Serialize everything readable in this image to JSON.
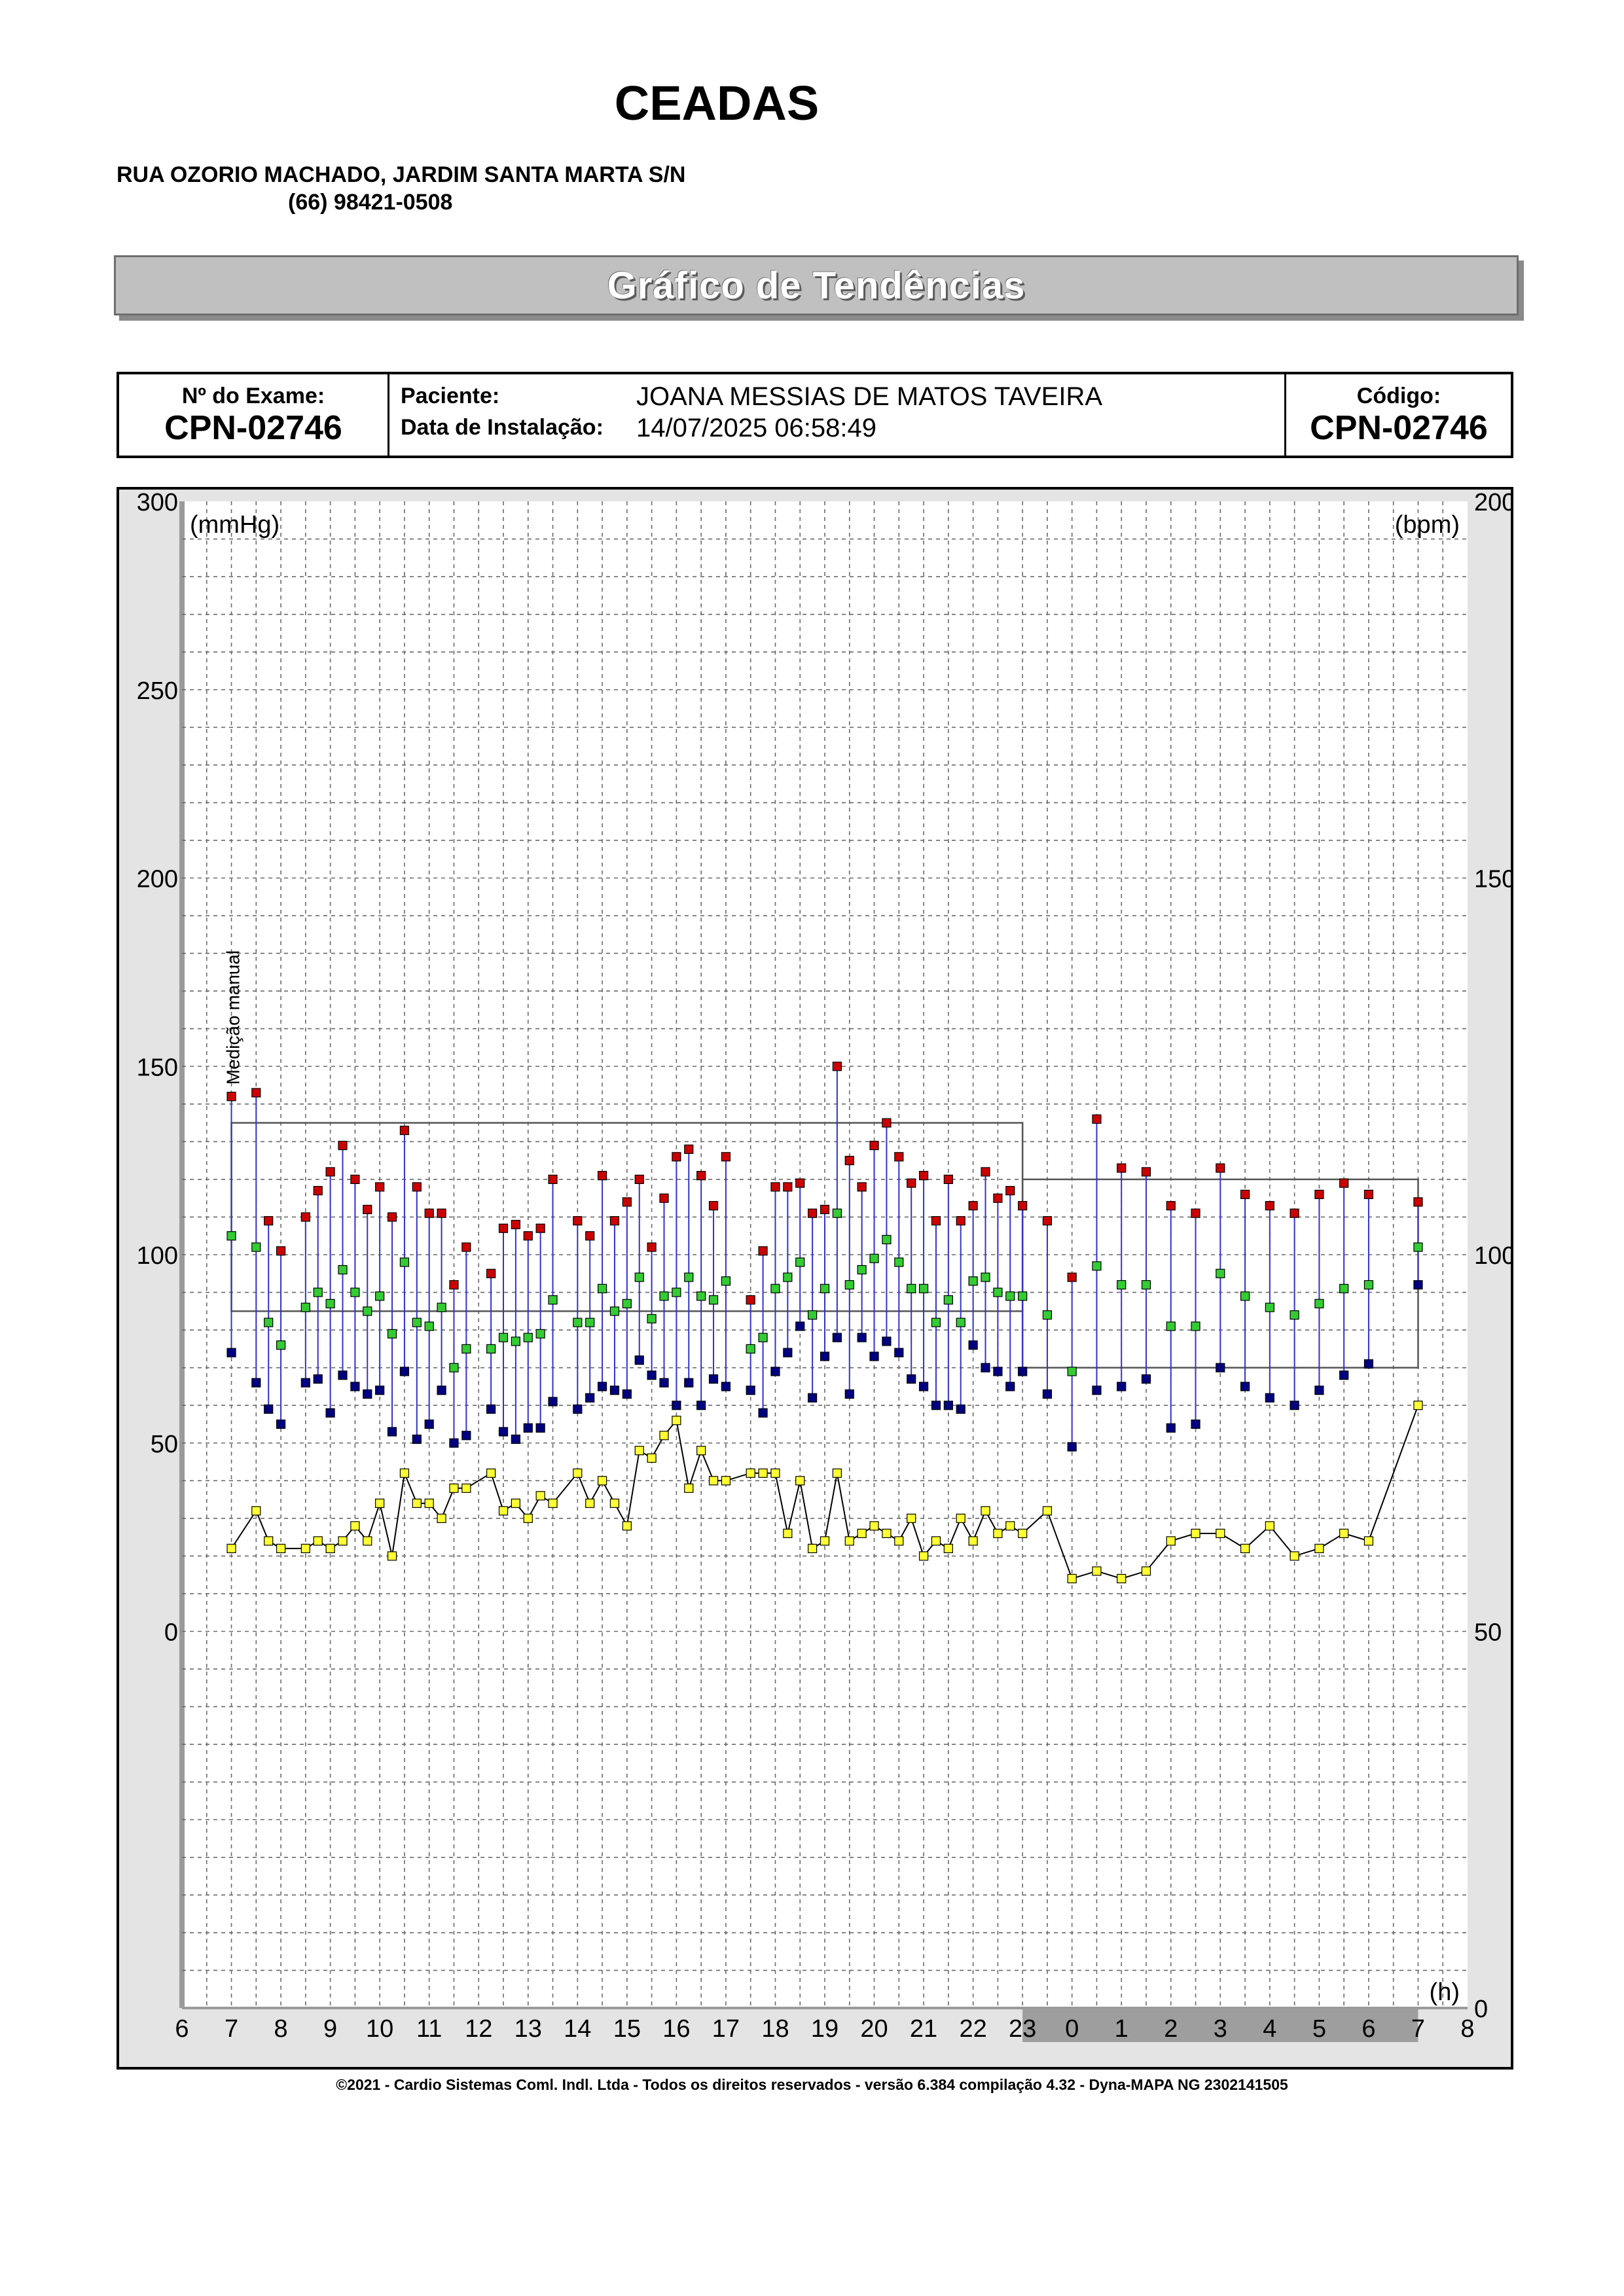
{
  "header": {
    "clinic_name": "CEADAS",
    "address": "RUA OZORIO MACHADO, JARDIM SANTA MARTA S/N",
    "phone": "(66) 98421-0508"
  },
  "title": "Gráfico de Tendências",
  "info": {
    "exam_label": "Nº do Exame:",
    "exam_value": "CPN-02746",
    "patient_label": "Paciente:",
    "patient_value": "JOANA MESSIAS DE MATOS TAVEIRA",
    "install_label": "Data de Instalação:",
    "install_value": "14/07/2025 06:58:49",
    "code_label": "Código:",
    "code_value": "CPN-02746"
  },
  "footer": "©2021 - Cardio Sistemas Coml. Indl. Ltda - Todos os direitos reservados - versão 6.384 compilação 4.32 - Dyna-MAPA NG 2302141505",
  "colors": {
    "systolic": "#cc0000",
    "diastolic": "#000080",
    "mean": "#33cc33",
    "heart_rate": "#ffff33",
    "connector": "#3333cc",
    "night_band": "#9e9e9e"
  },
  "chart_data": {
    "type": "scatter",
    "left_axis_label": "(mmHg)",
    "right_axis_label": "(bpm)",
    "x_axis_unit": "(h)",
    "annotation": "Medição manual",
    "left_axis_ticks": [
      300,
      250,
      200,
      150,
      100,
      50,
      0
    ],
    "right_axis_ticks": [
      200,
      150,
      100,
      50,
      0
    ],
    "x_ticks": [
      "6",
      "7",
      "8",
      "9",
      "10",
      "11",
      "12",
      "13",
      "14",
      "15",
      "16",
      "17",
      "18",
      "19",
      "20",
      "21",
      "22",
      "23",
      "0",
      "1",
      "2",
      "3",
      "4",
      "5",
      "6",
      "7",
      "8"
    ],
    "x_range_hours": [
      6,
      32
    ],
    "left_ylim": [
      -100,
      300
    ],
    "right_ylim": [
      0,
      200
    ],
    "night_shading_hours": [
      23,
      31
    ],
    "day_limits": {
      "start": 7,
      "end": 23,
      "systolic": 135,
      "diastolic": 85
    },
    "night_limits": {
      "start": 23,
      "end": 31,
      "systolic": 120,
      "diastolic": 70
    },
    "grid": true,
    "bp_series_order": [
      "systolic",
      "diastolic",
      "mean"
    ],
    "bp_readings": [
      [
        7.0,
        142,
        74,
        105
      ],
      [
        7.5,
        143,
        66,
        102
      ],
      [
        7.75,
        109,
        59,
        82
      ],
      [
        8.0,
        101,
        55,
        76
      ],
      [
        8.5,
        110,
        66,
        86
      ],
      [
        8.75,
        117,
        67,
        90
      ],
      [
        9.0,
        122,
        58,
        87
      ],
      [
        9.25,
        129,
        68,
        96
      ],
      [
        9.5,
        120,
        65,
        90
      ],
      [
        9.75,
        112,
        63,
        85
      ],
      [
        10.0,
        118,
        64,
        89
      ],
      [
        10.25,
        110,
        53,
        79
      ],
      [
        10.5,
        133,
        69,
        98
      ],
      [
        10.75,
        118,
        51,
        82
      ],
      [
        11.0,
        111,
        55,
        81
      ],
      [
        11.25,
        111,
        64,
        86
      ],
      [
        11.5,
        92,
        50,
        70
      ],
      [
        11.75,
        102,
        52,
        75
      ],
      [
        12.25,
        95,
        59,
        75
      ],
      [
        12.5,
        107,
        53,
        78
      ],
      [
        12.75,
        108,
        51,
        77
      ],
      [
        13.0,
        105,
        54,
        78
      ],
      [
        13.25,
        107,
        54,
        79
      ],
      [
        13.5,
        120,
        61,
        88
      ],
      [
        14.0,
        109,
        59,
        82
      ],
      [
        14.25,
        105,
        62,
        82
      ],
      [
        14.5,
        121,
        65,
        91
      ],
      [
        14.75,
        109,
        64,
        85
      ],
      [
        15.0,
        114,
        63,
        87
      ],
      [
        15.25,
        120,
        72,
        94
      ],
      [
        15.5,
        102,
        68,
        83
      ],
      [
        15.75,
        115,
        66,
        89
      ],
      [
        16.0,
        126,
        60,
        90
      ],
      [
        16.25,
        128,
        66,
        94
      ],
      [
        16.5,
        121,
        60,
        89
      ],
      [
        16.75,
        113,
        67,
        88
      ],
      [
        17.0,
        126,
        65,
        93
      ],
      [
        17.5,
        88,
        64,
        75
      ],
      [
        17.75,
        101,
        58,
        78
      ],
      [
        18.0,
        118,
        69,
        91
      ],
      [
        18.25,
        118,
        74,
        94
      ],
      [
        18.5,
        119,
        81,
        98
      ],
      [
        18.75,
        111,
        62,
        84
      ],
      [
        19.0,
        112,
        73,
        91
      ],
      [
        19.25,
        150,
        78,
        111
      ],
      [
        19.5,
        125,
        63,
        92
      ],
      [
        19.75,
        118,
        78,
        96
      ],
      [
        20.0,
        129,
        73,
        99
      ],
      [
        20.25,
        135,
        77,
        104
      ],
      [
        20.5,
        126,
        74,
        98
      ],
      [
        20.75,
        119,
        67,
        91
      ],
      [
        21.0,
        121,
        65,
        91
      ],
      [
        21.25,
        109,
        60,
        82
      ],
      [
        21.5,
        120,
        60,
        88
      ],
      [
        21.75,
        109,
        59,
        82
      ],
      [
        22.0,
        113,
        76,
        93
      ],
      [
        22.25,
        122,
        70,
        94
      ],
      [
        22.5,
        115,
        69,
        90
      ],
      [
        22.75,
        117,
        65,
        89
      ],
      [
        23.0,
        113,
        69,
        89
      ],
      [
        23.5,
        109,
        63,
        84
      ],
      [
        24.0,
        94,
        49,
        69
      ],
      [
        24.5,
        136,
        64,
        97
      ],
      [
        25.0,
        123,
        65,
        92
      ],
      [
        25.5,
        122,
        67,
        92
      ],
      [
        26.0,
        113,
        54,
        81
      ],
      [
        26.5,
        111,
        55,
        81
      ],
      [
        27.0,
        123,
        70,
        95
      ],
      [
        27.5,
        116,
        65,
        89
      ],
      [
        28.0,
        113,
        62,
        86
      ],
      [
        28.5,
        111,
        60,
        84
      ],
      [
        29.0,
        116,
        64,
        87
      ],
      [
        29.5,
        119,
        68,
        91
      ],
      [
        30.0,
        116,
        71,
        92
      ],
      [
        31.0,
        114,
        92,
        102
      ]
    ],
    "heart_rate": [
      [
        7.0,
        61
      ],
      [
        7.5,
        66
      ],
      [
        7.75,
        62
      ],
      [
        8.0,
        61
      ],
      [
        8.5,
        61
      ],
      [
        8.75,
        62
      ],
      [
        9.0,
        61
      ],
      [
        9.25,
        62
      ],
      [
        9.5,
        64
      ],
      [
        9.75,
        62
      ],
      [
        10.0,
        67
      ],
      [
        10.25,
        60
      ],
      [
        10.5,
        71
      ],
      [
        10.75,
        67
      ],
      [
        11.0,
        67
      ],
      [
        11.25,
        65
      ],
      [
        11.5,
        69
      ],
      [
        11.75,
        69
      ],
      [
        12.25,
        71
      ],
      [
        12.5,
        66
      ],
      [
        12.75,
        67
      ],
      [
        13.0,
        65
      ],
      [
        13.25,
        68
      ],
      [
        13.5,
        67
      ],
      [
        14.0,
        71
      ],
      [
        14.25,
        67
      ],
      [
        14.5,
        70
      ],
      [
        14.75,
        67
      ],
      [
        15.0,
        64
      ],
      [
        15.25,
        74
      ],
      [
        15.5,
        73
      ],
      [
        15.75,
        76
      ],
      [
        16.0,
        78
      ],
      [
        16.25,
        69
      ],
      [
        16.5,
        74
      ],
      [
        16.75,
        70
      ],
      [
        17.0,
        70
      ],
      [
        17.5,
        71
      ],
      [
        17.75,
        71
      ],
      [
        18.0,
        71
      ],
      [
        18.25,
        63
      ],
      [
        18.5,
        70
      ],
      [
        18.75,
        61
      ],
      [
        19.0,
        62
      ],
      [
        19.25,
        71
      ],
      [
        19.5,
        62
      ],
      [
        19.75,
        63
      ],
      [
        20.0,
        64
      ],
      [
        20.25,
        63
      ],
      [
        20.5,
        62
      ],
      [
        20.75,
        65
      ],
      [
        21.0,
        60
      ],
      [
        21.25,
        62
      ],
      [
        21.5,
        61
      ],
      [
        21.75,
        65
      ],
      [
        22.0,
        62
      ],
      [
        22.25,
        66
      ],
      [
        22.5,
        63
      ],
      [
        22.75,
        64
      ],
      [
        23.0,
        63
      ],
      [
        23.5,
        66
      ],
      [
        24.0,
        57
      ],
      [
        24.5,
        58
      ],
      [
        25.0,
        57
      ],
      [
        25.5,
        58
      ],
      [
        26.0,
        62
      ],
      [
        26.5,
        63
      ],
      [
        27.0,
        63
      ],
      [
        27.5,
        61
      ],
      [
        28.0,
        64
      ],
      [
        28.5,
        60
      ],
      [
        29.0,
        61
      ],
      [
        29.5,
        63
      ],
      [
        30.0,
        62
      ],
      [
        31.0,
        80
      ]
    ]
  }
}
